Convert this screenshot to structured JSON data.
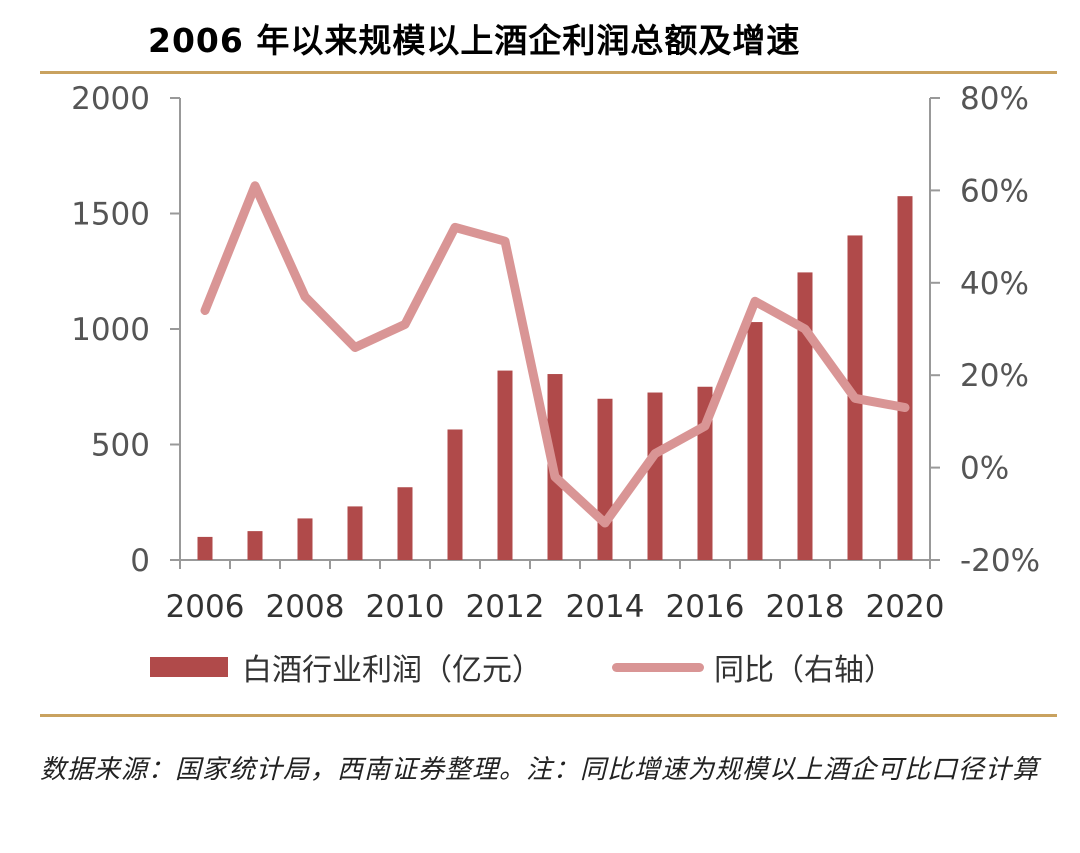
{
  "chart_data": {
    "type": "bar+line",
    "title": "2006 年以来规模以上酒企利润总额及增速",
    "x": [
      "2006",
      "2007",
      "2008",
      "2009",
      "2010",
      "2011",
      "2012",
      "2013",
      "2014",
      "2015",
      "2016",
      "2017",
      "2018",
      "2019",
      "2020"
    ],
    "xtick_labels": [
      "2006",
      "2008",
      "2010",
      "2012",
      "2014",
      "2016",
      "2018",
      "2020"
    ],
    "series": [
      {
        "name": "白酒行业利润（亿元）",
        "type": "bar",
        "axis": "left",
        "values": [
          100,
          125,
          180,
          232,
          315,
          565,
          820,
          805,
          698,
          725,
          750,
          1030,
          1245,
          1405,
          1575
        ]
      },
      {
        "name": "同比（右轴）",
        "type": "line",
        "axis": "right",
        "values": [
          34,
          61,
          37,
          26,
          31,
          52,
          49,
          -2,
          -12,
          3,
          9,
          36,
          30,
          15,
          13
        ]
      }
    ],
    "y_left": {
      "lim": [
        0,
        2000
      ],
      "ticks": [
        "0",
        "500",
        "1000",
        "1500",
        "2000"
      ]
    },
    "y_right": {
      "lim": [
        -20,
        80
      ],
      "ticks": [
        "-20%",
        "0%",
        "20%",
        "40%",
        "60%",
        "80%"
      ],
      "unit": "%"
    },
    "legend": "bottom",
    "colors": {
      "bar": "#b04a4a",
      "line": "#d99595",
      "axis": "#999999",
      "rule": "#c9a25f"
    }
  },
  "legend": {
    "bar_label": "白酒行业利润（亿元）",
    "line_label": "同比（右轴）"
  },
  "source_note": "数据来源：国家统计局，西南证券整理。注：同比增速为规模以上酒企可比口径计算"
}
